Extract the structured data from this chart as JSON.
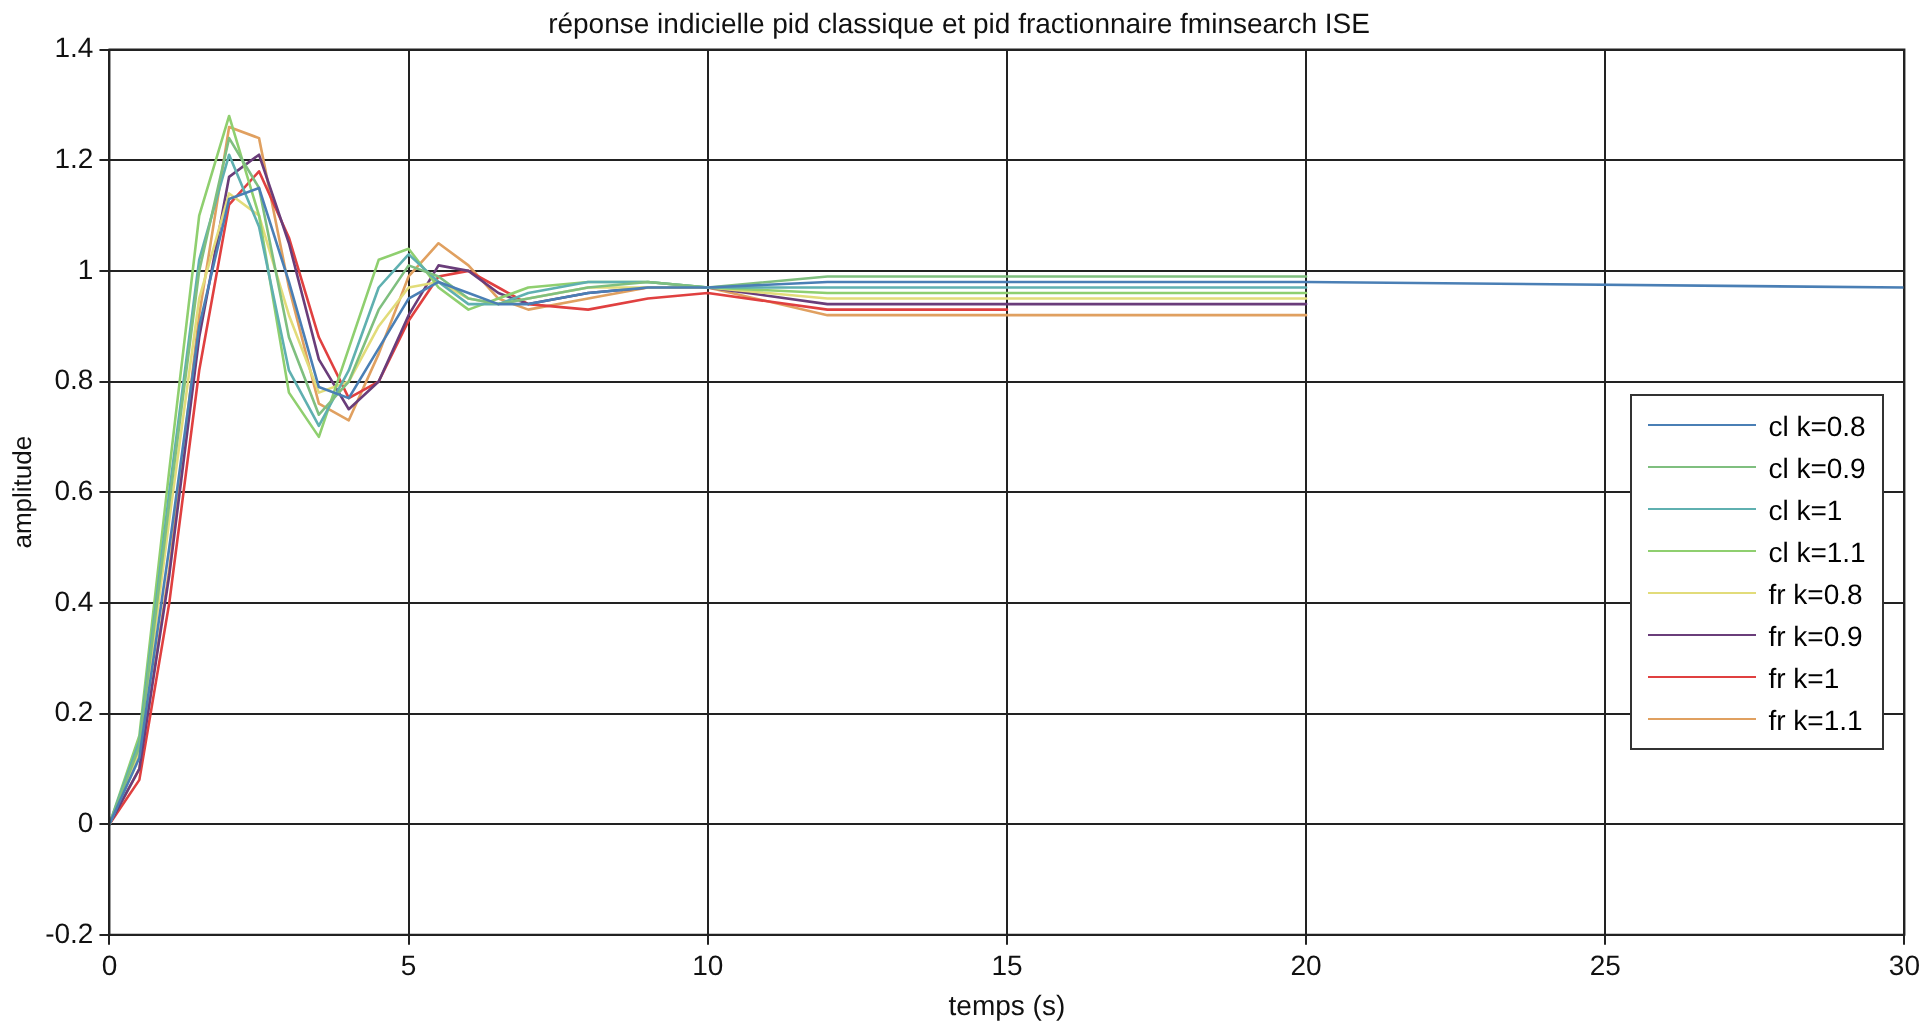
{
  "chart_data": {
    "type": "line",
    "title": "réponse indicielle pid classique et pid fractionnaire fminsearch ISE",
    "xlabel": "temps (s)",
    "ylabel": "amplitude",
    "x": [
      0,
      0.5,
      1,
      1.5,
      2,
      2.5,
      3,
      3.5,
      4,
      4.5,
      5,
      5.5,
      6,
      6.5,
      7,
      8,
      9,
      10,
      12,
      15,
      20,
      30
    ],
    "xlim": [
      0,
      30
    ],
    "xticks": [
      0,
      5,
      10,
      15,
      20,
      25,
      30
    ],
    "ylim": [
      -0.2,
      1.4
    ],
    "yticks": [
      -0.2,
      0,
      0.2,
      0.4,
      0.6,
      0.8,
      1,
      1.2,
      1.4
    ],
    "grid": true,
    "legend": "right",
    "marker": "none",
    "line_style": "solid",
    "series": [
      {
        "name": "cl k=0.8",
        "color": "#4a7fb5",
        "values": [
          0,
          0.12,
          0.5,
          0.9,
          1.13,
          1.15,
          0.98,
          0.79,
          0.77,
          0.86,
          0.95,
          0.98,
          0.96,
          0.94,
          0.94,
          0.96,
          0.97,
          0.97,
          0.98,
          0.98,
          0.98,
          0.97
        ]
      },
      {
        "name": "cl k=0.9",
        "color": "#7fbf7f",
        "values": [
          0,
          0.14,
          0.58,
          1.0,
          1.24,
          1.15,
          0.88,
          0.74,
          0.8,
          0.93,
          1.01,
          0.99,
          0.95,
          0.94,
          0.95,
          0.97,
          0.98,
          0.97,
          0.99,
          0.99,
          0.99,
          null
        ]
      },
      {
        "name": "cl k=1",
        "color": "#5fb0b0",
        "values": [
          0,
          0.15,
          0.6,
          1.02,
          1.21,
          1.08,
          0.82,
          0.72,
          0.82,
          0.97,
          1.03,
          0.98,
          0.94,
          0.94,
          0.96,
          0.98,
          0.98,
          0.97,
          0.97,
          0.97,
          0.97,
          null
        ]
      },
      {
        "name": "cl k=1.1",
        "color": "#8fcf6f",
        "values": [
          0,
          0.16,
          0.64,
          1.1,
          1.28,
          1.1,
          0.78,
          0.7,
          0.86,
          1.02,
          1.04,
          0.97,
          0.93,
          0.95,
          0.97,
          0.98,
          0.98,
          0.97,
          0.96,
          0.96,
          0.96,
          null
        ]
      },
      {
        "name": "fr k=0.8",
        "color": "#e2dc7a",
        "values": [
          0,
          0.13,
          0.55,
          0.95,
          1.14,
          1.1,
          0.92,
          0.78,
          0.8,
          0.9,
          0.97,
          0.98,
          0.95,
          0.94,
          0.95,
          0.97,
          0.97,
          0.97,
          0.95,
          0.95,
          0.95,
          null
        ]
      },
      {
        "name": "fr k=0.9",
        "color": "#6a3d7a",
        "values": [
          0,
          0.1,
          0.45,
          0.88,
          1.17,
          1.21,
          1.05,
          0.84,
          0.75,
          0.8,
          0.92,
          1.01,
          1.0,
          0.96,
          0.94,
          0.96,
          0.97,
          0.97,
          0.94,
          0.94,
          0.94,
          null
        ]
      },
      {
        "name": "fr k=1",
        "color": "#e04040",
        "values": [
          0,
          0.08,
          0.4,
          0.82,
          1.12,
          1.18,
          1.06,
          0.88,
          0.77,
          0.8,
          0.91,
          0.99,
          1.0,
          0.97,
          0.94,
          0.93,
          0.95,
          0.96,
          0.93,
          0.93,
          null,
          null
        ]
      },
      {
        "name": "fr k=1.1",
        "color": "#e0a060",
        "values": [
          0,
          0.1,
          0.46,
          0.92,
          1.26,
          1.24,
          0.97,
          0.76,
          0.73,
          0.85,
          0.99,
          1.05,
          1.01,
          0.95,
          0.93,
          0.95,
          0.97,
          0.97,
          0.92,
          0.92,
          0.92,
          null
        ]
      }
    ]
  }
}
